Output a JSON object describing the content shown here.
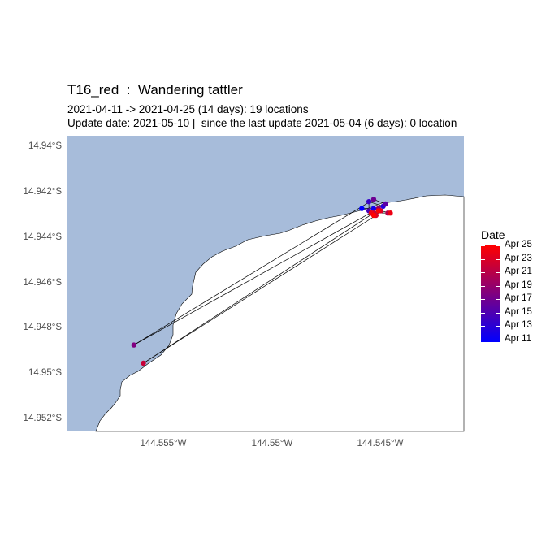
{
  "title": "T16_red  :  Wandering tattler",
  "subtitle1": "2021-04-11 -> 2021-04-25 (14 days): 19 locations",
  "subtitle2": "Update date: 2021-05-10 |  since the last update 2021-05-04 (6 days): 0 location",
  "colors": {
    "sea": "#a7bcda",
    "land": "#ffffff",
    "track": "#000000",
    "date_low": "#0000ff",
    "date_high": "#ff0000"
  },
  "chart_data": {
    "type": "scatter",
    "x_ticks": [
      "144.555°W",
      "144.55°W",
      "144.545°W"
    ],
    "y_ticks": [
      "14.94°S",
      "14.942°S",
      "14.944°S",
      "14.946°S",
      "14.948°S",
      "14.95°S",
      "14.952°S"
    ],
    "xlim": [
      -144.5585,
      -144.5418
    ],
    "ylim": [
      -14.9526,
      -14.9396
    ],
    "legend": {
      "title": "Date",
      "labels": [
        "Apr 25",
        "Apr 23",
        "Apr 21",
        "Apr 19",
        "Apr 17",
        "Apr 15",
        "Apr 13",
        "Apr 11"
      ]
    },
    "locations": [
      {
        "date": "2021-04-11",
        "lon": -144.5461,
        "lat": -14.9428
      },
      {
        "date": "2021-04-12",
        "lon": -144.5456,
        "lat": -14.9428
      },
      {
        "date": "2021-04-13",
        "lon": -144.5452,
        "lat": -14.9427
      },
      {
        "date": "2021-04-14",
        "lon": -144.5458,
        "lat": -14.9425
      },
      {
        "date": "2021-04-15",
        "lon": -144.5458,
        "lat": -14.9429
      },
      {
        "date": "2021-04-16",
        "lon": -144.5451,
        "lat": -14.9426
      },
      {
        "date": "2021-04-17",
        "lon": -144.5456,
        "lat": -14.9424
      },
      {
        "date": "2021-04-18",
        "lon": -144.5557,
        "lat": -14.9488
      },
      {
        "date": "2021-04-19",
        "lon": -144.5454,
        "lat": -14.9428
      },
      {
        "date": "2021-04-20",
        "lon": -144.5457,
        "lat": -14.943
      },
      {
        "date": "2021-04-21",
        "lon": -144.545,
        "lat": -14.943
      },
      {
        "date": "2021-04-22",
        "lon": -144.5456,
        "lat": -14.943
      },
      {
        "date": "2021-04-22",
        "lon": -144.5553,
        "lat": -14.9496
      },
      {
        "date": "2021-04-23",
        "lon": -144.5455,
        "lat": -14.9431
      },
      {
        "date": "2021-04-23",
        "lon": -144.5453,
        "lat": -14.9429
      },
      {
        "date": "2021-04-24",
        "lon": -144.5449,
        "lat": -14.943
      },
      {
        "date": "2021-04-24",
        "lon": -144.5457,
        "lat": -14.943
      },
      {
        "date": "2021-04-25",
        "lon": -144.5454,
        "lat": -14.9429
      },
      {
        "date": "2021-04-25",
        "lon": -144.5456,
        "lat": -14.9431
      }
    ]
  }
}
